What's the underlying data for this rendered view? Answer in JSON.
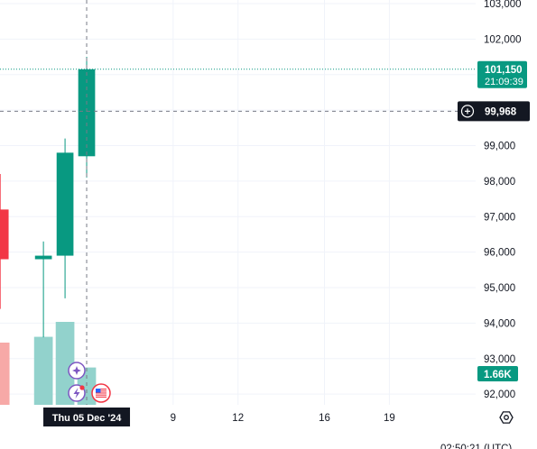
{
  "chart_data": {
    "type": "candlestick",
    "y_axis": {
      "ticks": [
        92000,
        93000,
        94000,
        95000,
        96000,
        97000,
        98000,
        99000,
        100000,
        101000,
        102000,
        103000
      ],
      "tick_labels": [
        "92,000",
        "93,000",
        "94,000",
        "95,000",
        "96,000",
        "97,000",
        "98,000",
        "99,000",
        "",
        "",
        "102,000",
        "103,000"
      ],
      "range": [
        91700,
        103100
      ]
    },
    "x_axis": {
      "tick_labels": [
        {
          "x": 9,
          "label": "9"
        },
        {
          "x": 12,
          "label": "12"
        },
        {
          "x": 16,
          "label": "16"
        },
        {
          "x": 19,
          "label": "19"
        }
      ],
      "range": [
        1.2,
        23.2
      ],
      "crosshair_label": "Thu 05 Dec '24"
    },
    "candles": [
      {
        "x": 1,
        "open": 97200,
        "high": 98200,
        "low": 94400,
        "close": 95800
      },
      {
        "x": 3,
        "open": 95800,
        "high": 96300,
        "low": 93600,
        "close": 95900
      },
      {
        "x": 4,
        "open": 95900,
        "high": 99200,
        "low": 94700,
        "close": 98800
      },
      {
        "x": 5,
        "open": 98700,
        "high": 101500,
        "low": 98100,
        "close": 101150
      }
    ],
    "volume": [
      {
        "x": 1,
        "level": 0.75,
        "direction": "down"
      },
      {
        "x": 3,
        "level": 0.82,
        "direction": "up"
      },
      {
        "x": 4,
        "level": 1.0,
        "direction": "up"
      },
      {
        "x": 5,
        "level": 0.45,
        "direction": "up"
      }
    ],
    "last_price": {
      "value": 101150,
      "label": "101,150",
      "countdown": "21:09:39"
    },
    "crosshair": {
      "price": 99968,
      "label": "99,968",
      "x": 5
    },
    "volume_label": "1.66K",
    "time": "02:50:21 (UTC)",
    "colors": {
      "up": "#089981",
      "down": "#F23645",
      "up_volume": "#92D2CC",
      "down_volume": "#F7A9A7",
      "grid": "#F0F3FA",
      "text": "#131722",
      "crosshair_label_bg": "#131722"
    },
    "icons": [
      "crosshair-target-icon",
      "lightning-icon",
      "us-flag-icon",
      "gear-icon"
    ]
  }
}
